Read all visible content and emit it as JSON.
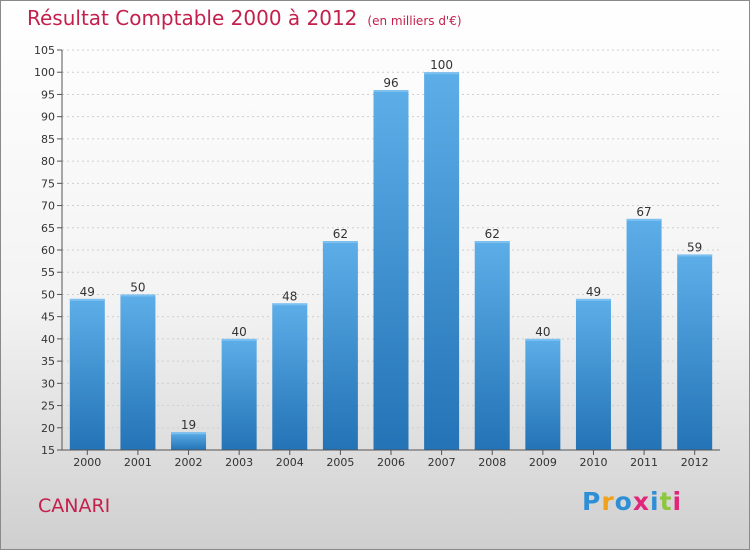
{
  "title": "Résultat Comptable 2000 à 2012",
  "subtitle": "(en milliers d'€)",
  "commune": "CANARI",
  "logo": {
    "text": "Proxiti",
    "letters": [
      {
        "ch": "P",
        "color": "#2e8fd6"
      },
      {
        "ch": "r",
        "color": "#f0a21c"
      },
      {
        "ch": "o",
        "color": "#2e8fd6"
      },
      {
        "ch": "x",
        "color": "#e0267a"
      },
      {
        "ch": "i",
        "color": "#2e8fd6"
      },
      {
        "ch": "t",
        "color": "#8dc63f"
      },
      {
        "ch": "i",
        "color": "#e0267a"
      }
    ]
  },
  "colors": {
    "title": "#c4204c",
    "bar_top": "#5daee8",
    "bar_bottom": "#2373b6"
  },
  "chart_data": {
    "type": "bar",
    "categories": [
      "2000",
      "2001",
      "2002",
      "2003",
      "2004",
      "2005",
      "2006",
      "2007",
      "2008",
      "2009",
      "2010",
      "2011",
      "2012"
    ],
    "values": [
      49,
      50,
      19,
      40,
      48,
      62,
      96,
      100,
      62,
      40,
      49,
      67,
      59
    ],
    "title": "Résultat Comptable 2000 à 2012",
    "ylim": [
      15,
      105
    ],
    "yticks": [
      15,
      20,
      25,
      30,
      35,
      40,
      45,
      50,
      55,
      60,
      65,
      70,
      75,
      80,
      85,
      90,
      95,
      100,
      105
    ],
    "grid": true,
    "data_labels": true
  }
}
